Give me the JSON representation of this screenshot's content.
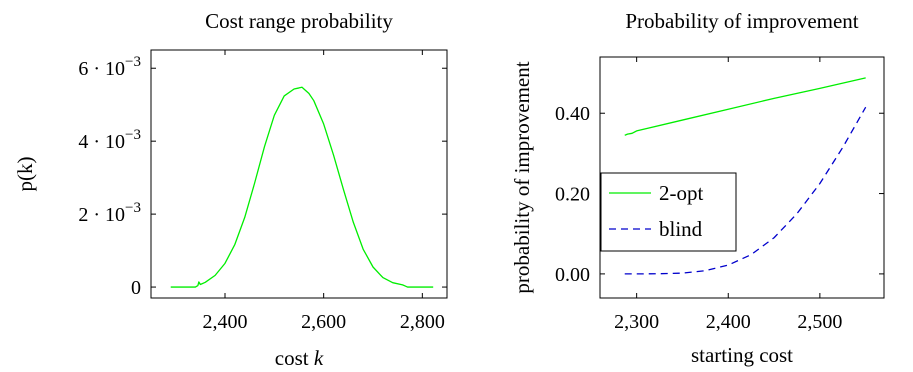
{
  "chart_data": [
    {
      "type": "line",
      "title": "Cost range probability",
      "xlabel": "cost",
      "xlabel_var": "k",
      "ylabel": "p(k)",
      "xlim": [
        2250,
        2850
      ],
      "ylim": [
        -0.0003,
        0.0065
      ],
      "xticks": [
        2400,
        2600,
        2800
      ],
      "xtick_labels": [
        "2,400",
        "2,600",
        "2,800"
      ],
      "yticks": [
        0,
        0.002,
        0.004,
        0.006
      ],
      "ytick_labels": [
        {
          "base": "0",
          "exp": ""
        },
        {
          "base": "2 · 10",
          "exp": "−3"
        },
        {
          "base": "4 · 10",
          "exp": "−3"
        },
        {
          "base": "6 · 10",
          "exp": "−3"
        }
      ],
      "grid": false,
      "series": [
        {
          "color": "#00ee00",
          "x": [
            2290,
            2300,
            2320,
            2340,
            2345,
            2347,
            2350,
            2360,
            2380,
            2400,
            2420,
            2440,
            2460,
            2480,
            2500,
            2520,
            2540,
            2550,
            2556,
            2560,
            2570,
            2580,
            2600,
            2620,
            2640,
            2660,
            2680,
            2700,
            2720,
            2740,
            2760,
            2765,
            2770,
            2780,
            2800,
            2822
          ],
          "y": [
            0,
            0,
            0,
            0,
            4e-05,
            0.00014,
            7e-05,
            0.00013,
            0.00032,
            0.00065,
            0.00117,
            0.00191,
            0.00285,
            0.00385,
            0.00471,
            0.00524,
            0.00543,
            0.00546,
            0.00548,
            0.00543,
            0.00531,
            0.00511,
            0.00447,
            0.00362,
            0.00268,
            0.00178,
            0.00104,
            0.00055,
            0.00026,
            0.00012,
            6e-05,
            3e-05,
            0,
            0,
            0,
            0
          ]
        }
      ]
    },
    {
      "type": "line",
      "title": "Probability of improvement",
      "xlabel": "starting cost",
      "ylabel": "probability of improvement",
      "xlim": [
        2260,
        2570
      ],
      "ylim": [
        -0.06,
        0.54
      ],
      "xticks": [
        2300,
        2400,
        2500
      ],
      "xtick_labels": [
        "2,300",
        "2,400",
        "2,500"
      ],
      "yticks": [
        0,
        0.2,
        0.4
      ],
      "ytick_labels": [
        "0.00",
        "0.20",
        "0.40"
      ],
      "grid": false,
      "legend_position": "left",
      "series": [
        {
          "name": "2-opt",
          "color": "#00ee00",
          "dash": "solid",
          "x": [
            2287,
            2290,
            2295,
            2300,
            2350,
            2400,
            2450,
            2500,
            2550
          ],
          "y": [
            0.345,
            0.348,
            0.35,
            0.356,
            0.383,
            0.41,
            0.437,
            0.462,
            0.488
          ]
        },
        {
          "name": "blind",
          "color": "#0000cc",
          "dash": "dashed",
          "x": [
            2287,
            2300,
            2325,
            2350,
            2375,
            2400,
            2425,
            2450,
            2475,
            2500,
            2525,
            2550
          ],
          "y": [
            0,
            0,
            0.0005,
            0.002,
            0.008,
            0.022,
            0.048,
            0.09,
            0.15,
            0.225,
            0.315,
            0.415
          ]
        }
      ]
    }
  ]
}
